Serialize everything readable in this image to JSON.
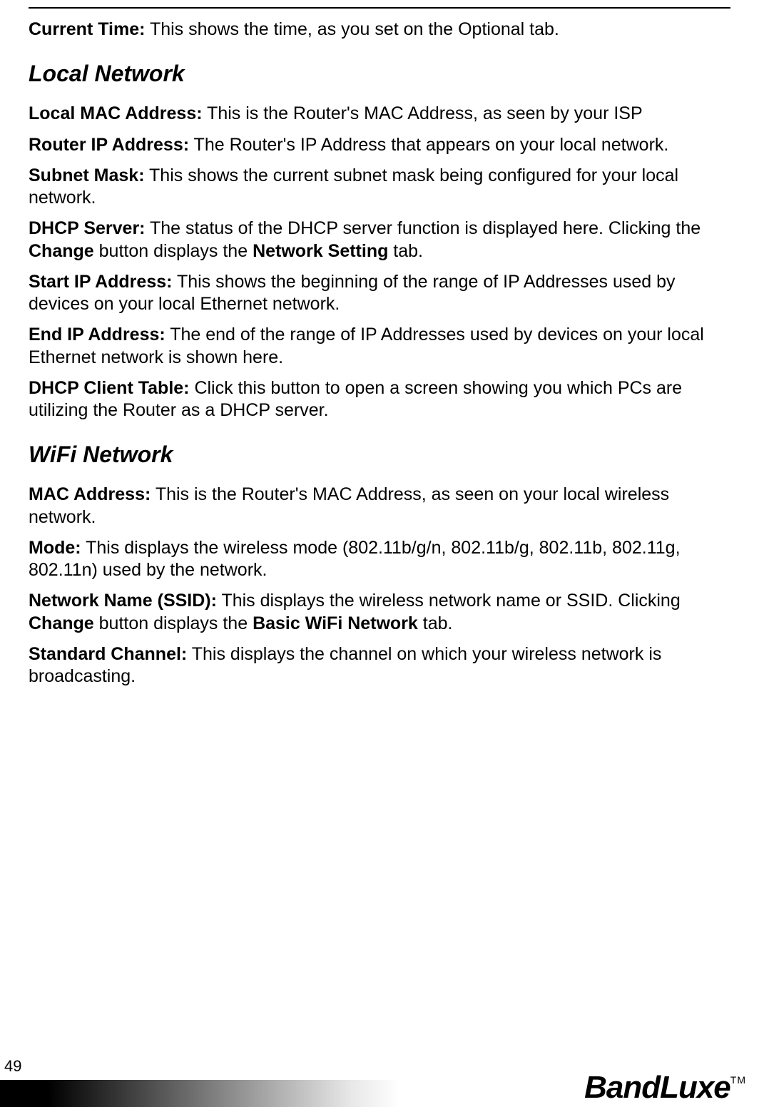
{
  "page_number": "49",
  "brand": "BandLuxe",
  "trademark": "TM",
  "intro": {
    "current_time_label": "Current Time:",
    "current_time_text": " This shows the time, as you set on the Optional tab."
  },
  "local_network": {
    "heading": "Local Network",
    "items": [
      {
        "label": "Local MAC Address:",
        "text": " This is the Router's MAC Address, as seen by your ISP"
      },
      {
        "label": "Router IP Address:",
        "text": " The Router's IP Address that appears on your local network."
      },
      {
        "label": "Subnet Mask:",
        "text": " This shows the current subnet mask being configured for your local network."
      },
      {
        "label": "DHCP Server:",
        "text_pre": " The status of the DHCP server function is displayed here. Clicking the ",
        "bold1": "Change",
        "text_mid": " button displays the ",
        "bold2": "Network Setting",
        "text_post": " tab."
      },
      {
        "label": "Start IP Address:",
        "text": " This shows the beginning of the range of IP Addresses used by devices on your local Ethernet network."
      },
      {
        "label": "End IP Address:",
        "text": " The end of the range of IP Addresses used by devices on your local Ethernet network is shown here."
      },
      {
        "label": "DHCP Client Table:",
        "text": " Click this button to open a screen showing you which PCs are utilizing the Router as a DHCP server."
      }
    ]
  },
  "wifi_network": {
    "heading": "WiFi Network",
    "items": [
      {
        "label": "MAC Address:",
        "text": " This is the Router's MAC Address, as seen on your local wireless network."
      },
      {
        "label": "Mode:",
        "text": " This displays the wireless mode (802.11b/g/n, 802.11b/g, 802.11b, 802.11g, 802.11n) used by the network."
      },
      {
        "label": "Network Name (SSID):",
        "text_pre": " This displays the wireless network name or SSID. Clicking ",
        "bold1": "Change",
        "text_mid": " button displays the ",
        "bold2": "Basic WiFi Network",
        "text_post": " tab."
      },
      {
        "label": "Standard Channel:",
        "text": " This displays the channel on which your wireless network is broadcasting."
      }
    ]
  }
}
